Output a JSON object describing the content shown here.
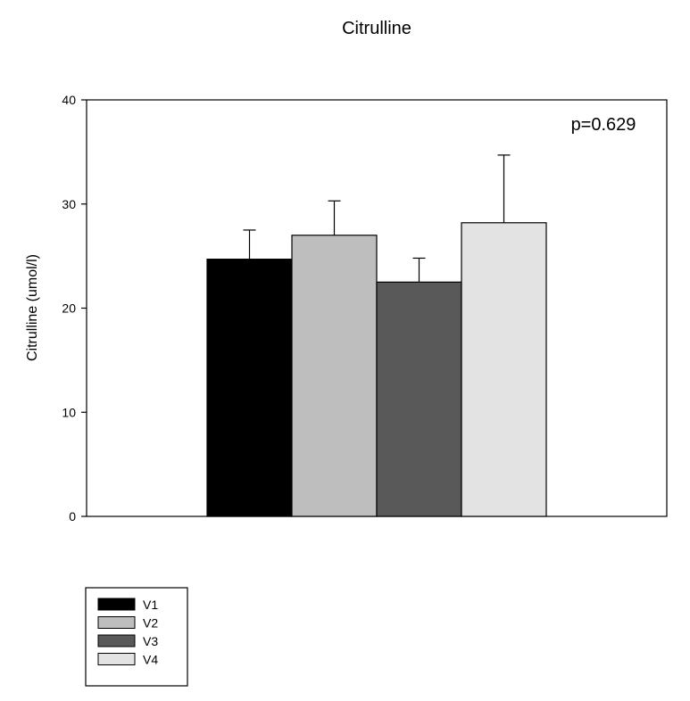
{
  "chart_data": {
    "type": "bar",
    "title": "Citrulline",
    "xlabel": "",
    "ylabel": "Citrulline (umol/l)",
    "ylim": [
      0,
      40
    ],
    "yticks": [
      0,
      10,
      20,
      30,
      40
    ],
    "grid": false,
    "annotation": "p=0.629",
    "series": [
      {
        "name": "V1",
        "value": 24.7,
        "error": 2.8,
        "color": "#000000"
      },
      {
        "name": "V2",
        "value": 27.0,
        "error": 3.3,
        "color": "#bebebe"
      },
      {
        "name": "V3",
        "value": 22.5,
        "error": 2.3,
        "color": "#595959"
      },
      {
        "name": "V4",
        "value": 28.2,
        "error": 6.5,
        "color": "#e3e3e3"
      }
    ],
    "legend_position": "bottom-left"
  }
}
